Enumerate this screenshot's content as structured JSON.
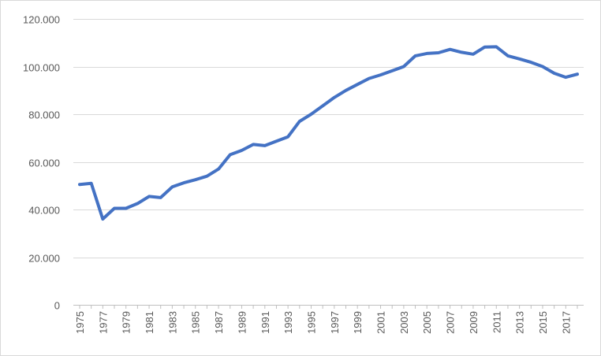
{
  "chart_data": {
    "type": "line",
    "title": "",
    "xlabel": "",
    "ylabel": "",
    "ylim": [
      0,
      120000
    ],
    "grid": true,
    "legend": "none",
    "y_ticks": [
      "0",
      "20.000",
      "40.000",
      "60.000",
      "80.000",
      "100.000",
      "120.000"
    ],
    "x_tick_labels": [
      "1975",
      "1977",
      "1979",
      "1981",
      "1983",
      "1985",
      "1987",
      "1989",
      "1991",
      "1993",
      "1995",
      "1997",
      "1999",
      "2001",
      "2003",
      "2005",
      "2007",
      "2009",
      "2011",
      "2013",
      "2015",
      "2017"
    ],
    "x": [
      1975,
      1976,
      1977,
      1978,
      1979,
      1980,
      1981,
      1982,
      1983,
      1984,
      1985,
      1986,
      1987,
      1988,
      1989,
      1990,
      1991,
      1992,
      1993,
      1994,
      1995,
      1996,
      1997,
      1998,
      1999,
      2000,
      2001,
      2002,
      2003,
      2004,
      2005,
      2006,
      2007,
      2008,
      2009,
      2010,
      2011,
      2012,
      2013,
      2014,
      2015,
      2016,
      2017,
      2018
    ],
    "series": [
      {
        "color": "#4472C4",
        "values": [
          50500,
          51000,
          36000,
          40500,
          40500,
          42500,
          45500,
          45000,
          49500,
          51200,
          52500,
          54000,
          57000,
          63000,
          64800,
          67300,
          66800,
          68700,
          70500,
          77000,
          80000,
          83500,
          87000,
          90000,
          92500,
          95000,
          96500,
          98200,
          100000,
          104500,
          105500,
          105800,
          107200,
          106000,
          105200,
          108200,
          108300,
          104500,
          103200,
          101800,
          100000,
          97200,
          95500,
          96800
        ]
      }
    ]
  }
}
